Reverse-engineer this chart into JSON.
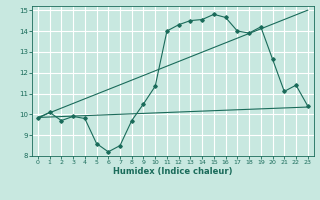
{
  "title": "",
  "xlabel": "Humidex (Indice chaleur)",
  "ylabel": "",
  "xlim": [
    -0.5,
    23.5
  ],
  "ylim": [
    8,
    15.2
  ],
  "xticks": [
    0,
    1,
    2,
    3,
    4,
    5,
    6,
    7,
    8,
    9,
    10,
    11,
    12,
    13,
    14,
    15,
    16,
    17,
    18,
    19,
    20,
    21,
    22,
    23
  ],
  "yticks": [
    8,
    9,
    10,
    11,
    12,
    13,
    14,
    15
  ],
  "bg_color": "#c8e8e0",
  "grid_color": "#ffffff",
  "line_color": "#1a6b5a",
  "line1_x": [
    0,
    1,
    2,
    3,
    4,
    5,
    6,
    7,
    8,
    9,
    10,
    11,
    12,
    13,
    14,
    15,
    16,
    17,
    18,
    19,
    20,
    21,
    22,
    23
  ],
  "line1_y": [
    9.8,
    10.1,
    9.7,
    9.9,
    9.8,
    8.6,
    8.2,
    8.5,
    9.7,
    10.5,
    11.35,
    14.0,
    14.3,
    14.5,
    14.55,
    14.8,
    14.65,
    14.0,
    13.9,
    14.2,
    12.65,
    11.1,
    11.4,
    10.4
  ],
  "line2_x": [
    0,
    23
  ],
  "line2_y": [
    9.85,
    10.35
  ],
  "line3_x": [
    0,
    23
  ],
  "line3_y": [
    9.85,
    15.0
  ]
}
